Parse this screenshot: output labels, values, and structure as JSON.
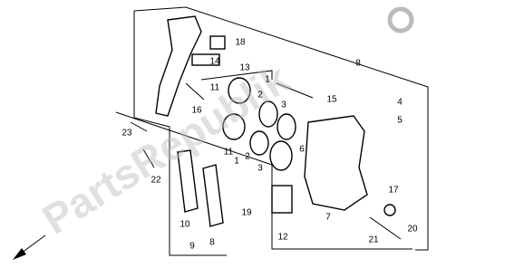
{
  "watermark": "PartsRepublik",
  "callouts": [
    {
      "label": "18"
    },
    {
      "label": "14"
    },
    {
      "label": "13"
    },
    {
      "label": "1"
    },
    {
      "label": "8"
    },
    {
      "label": "11"
    },
    {
      "label": "2"
    },
    {
      "label": "15"
    },
    {
      "label": "3"
    },
    {
      "label": "4"
    },
    {
      "label": "16"
    },
    {
      "label": "5"
    },
    {
      "label": "23"
    },
    {
      "label": "11"
    },
    {
      "label": "2"
    },
    {
      "label": "1"
    },
    {
      "label": "3"
    },
    {
      "label": "22"
    },
    {
      "label": "6"
    },
    {
      "label": "7"
    },
    {
      "label": "17"
    },
    {
      "label": "19"
    },
    {
      "label": "10"
    },
    {
      "label": "12"
    },
    {
      "label": "21"
    },
    {
      "label": "20"
    },
    {
      "label": "9"
    },
    {
      "label": "8"
    }
  ]
}
